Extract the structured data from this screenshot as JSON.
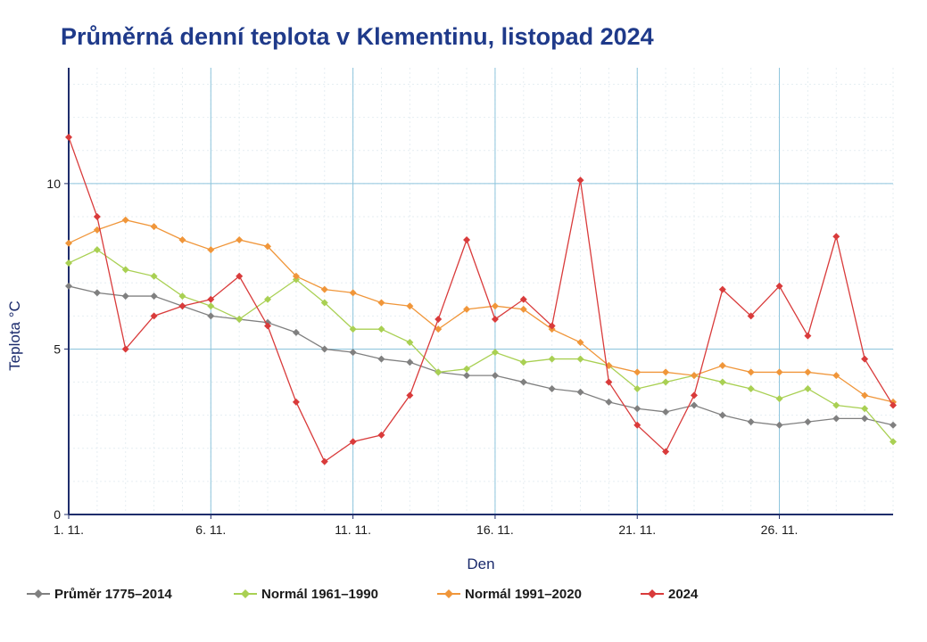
{
  "chart_data": {
    "type": "line",
    "title": "Průměrná denní teplota v Klementinu, listopad 2024",
    "xlabel": "Den",
    "ylabel": "Teplota °C",
    "x": [
      1,
      2,
      3,
      4,
      5,
      6,
      7,
      8,
      9,
      10,
      11,
      12,
      13,
      14,
      15,
      16,
      17,
      18,
      19,
      20,
      21,
      22,
      23,
      24,
      25,
      26,
      27,
      28,
      29,
      30
    ],
    "x_ticks": [
      {
        "value": 1,
        "label": "1. 11."
      },
      {
        "value": 6,
        "label": "6. 11."
      },
      {
        "value": 11,
        "label": "11. 11."
      },
      {
        "value": 16,
        "label": "16. 11."
      },
      {
        "value": 21,
        "label": "21. 11."
      },
      {
        "value": 26,
        "label": "26. 11."
      }
    ],
    "y_ticks": [
      {
        "value": 0,
        "label": "0"
      },
      {
        "value": 5,
        "label": "5"
      },
      {
        "value": 10,
        "label": "10"
      }
    ],
    "xlim": [
      1,
      30
    ],
    "ylim": [
      0,
      13.5
    ],
    "grid": true,
    "legend_position": "bottom",
    "series": [
      {
        "name": "Průměr 1775–2014",
        "color": "#808080",
        "values": [
          6.9,
          6.7,
          6.6,
          6.6,
          6.3,
          6.0,
          5.9,
          5.8,
          5.5,
          5.0,
          4.9,
          4.7,
          4.6,
          4.3,
          4.2,
          4.2,
          4.0,
          3.8,
          3.7,
          3.4,
          3.2,
          3.1,
          3.3,
          3.0,
          2.8,
          2.7,
          2.8,
          2.9,
          2.9,
          2.7
        ]
      },
      {
        "name": "Normál 1961–1990",
        "color": "#a9d053",
        "values": [
          7.6,
          8.0,
          7.4,
          7.2,
          6.6,
          6.3,
          5.9,
          6.5,
          7.1,
          6.4,
          5.6,
          5.6,
          5.2,
          4.3,
          4.4,
          4.9,
          4.6,
          4.7,
          4.7,
          4.5,
          3.8,
          4.0,
          4.2,
          4.0,
          3.8,
          3.5,
          3.8,
          3.3,
          3.2,
          2.2
        ]
      },
      {
        "name": "Normál 1991–2020",
        "color": "#f0963a",
        "values": [
          8.2,
          8.6,
          8.9,
          8.7,
          8.3,
          8.0,
          8.3,
          8.1,
          7.2,
          6.8,
          6.7,
          6.4,
          6.3,
          5.6,
          6.2,
          6.3,
          6.2,
          5.6,
          5.2,
          4.5,
          4.3,
          4.3,
          4.2,
          4.5,
          4.3,
          4.3,
          4.3,
          4.2,
          3.6,
          3.4
        ]
      },
      {
        "name": "2024",
        "color": "#d93b3b",
        "values": [
          11.4,
          9.0,
          5.0,
          6.0,
          6.3,
          6.5,
          7.2,
          5.7,
          3.4,
          1.6,
          2.2,
          2.4,
          3.6,
          5.9,
          8.3,
          5.9,
          6.5,
          5.7,
          10.1,
          4.0,
          2.7,
          1.9,
          3.6,
          6.8,
          6.0,
          6.9,
          5.4,
          8.4,
          4.7,
          3.3
        ]
      }
    ]
  }
}
